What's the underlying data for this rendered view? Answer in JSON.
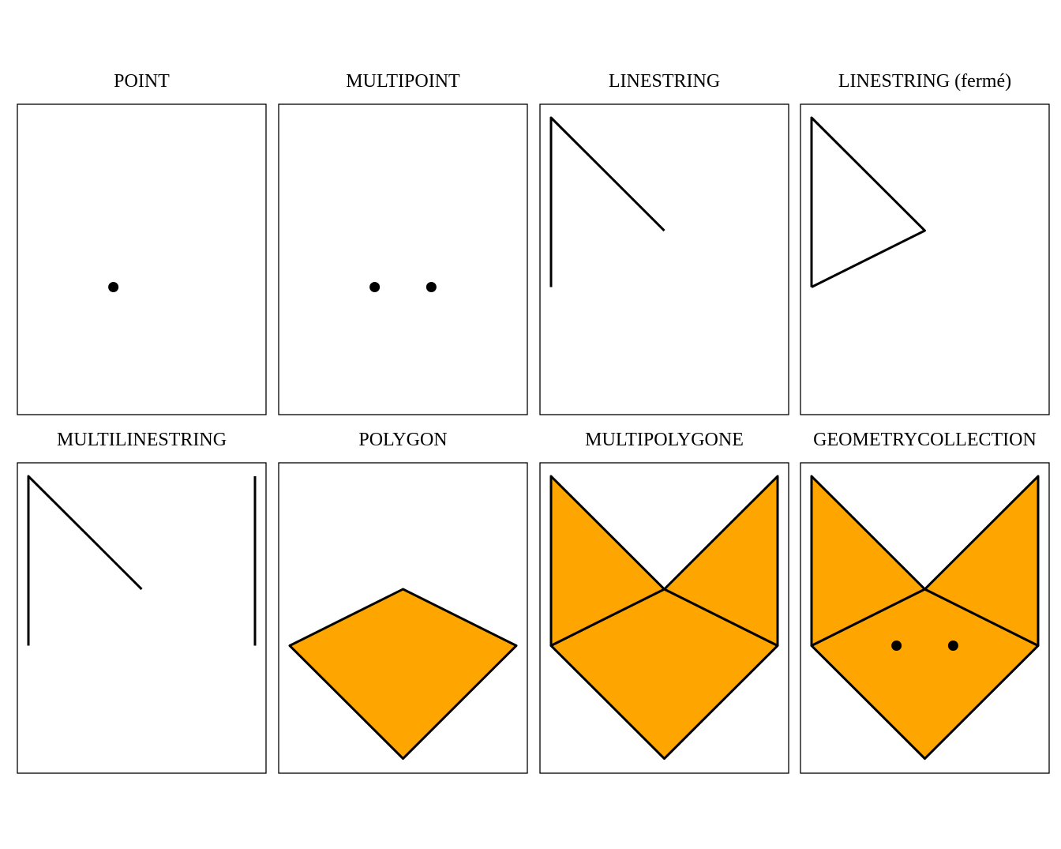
{
  "figure": {
    "fill_color": "#FFA500",
    "stroke_color": "#000000",
    "panels": [
      {
        "title": "POINT",
        "kind": "point",
        "points": [
          [
            1.5,
            1
          ]
        ]
      },
      {
        "title": "MULTIPOINT",
        "kind": "multipoint",
        "points": [
          [
            1.5,
            1
          ],
          [
            2.5,
            1
          ]
        ]
      },
      {
        "title": "LINESTRING",
        "kind": "linestring",
        "lines": [
          [
            [
              0,
              1
            ],
            [
              0,
              4
            ],
            [
              2,
              2
            ]
          ]
        ]
      },
      {
        "title": "LINESTRING (fermé)",
        "kind": "linestring",
        "lines": [
          [
            [
              0,
              1
            ],
            [
              0,
              4
            ],
            [
              2,
              2
            ],
            [
              0,
              1
            ]
          ]
        ]
      },
      {
        "title": "MULTILINESTRING",
        "kind": "multilinestring",
        "lines": [
          [
            [
              0,
              1
            ],
            [
              0,
              4
            ],
            [
              2,
              2
            ]
          ],
          [
            [
              4,
              1
            ],
            [
              4,
              4
            ]
          ]
        ]
      },
      {
        "title": "POLYGON",
        "kind": "polygon",
        "polygons": [
          [
            [
              0,
              1
            ],
            [
              2,
              2
            ],
            [
              4,
              1
            ],
            [
              2,
              -1
            ]
          ]
        ]
      },
      {
        "title": "MULTIPOLYGONE",
        "kind": "multipolygon",
        "polygons": [
          [
            [
              0,
              1
            ],
            [
              2,
              2
            ],
            [
              4,
              1
            ],
            [
              2,
              -1
            ]
          ],
          [
            [
              0,
              1
            ],
            [
              0,
              4
            ],
            [
              2,
              2
            ]
          ],
          [
            [
              4,
              1
            ],
            [
              4,
              4
            ],
            [
              2,
              2
            ]
          ]
        ]
      },
      {
        "title": "GEOMETRYCOLLECTION",
        "kind": "geometrycollection",
        "polygons": [
          [
            [
              0,
              1
            ],
            [
              2,
              2
            ],
            [
              4,
              1
            ],
            [
              2,
              -1
            ]
          ],
          [
            [
              0,
              1
            ],
            [
              0,
              4
            ],
            [
              2,
              2
            ]
          ],
          [
            [
              4,
              1
            ],
            [
              4,
              4
            ],
            [
              2,
              2
            ]
          ]
        ],
        "points": [
          [
            1.5,
            1
          ],
          [
            2.5,
            1
          ]
        ]
      }
    ]
  }
}
